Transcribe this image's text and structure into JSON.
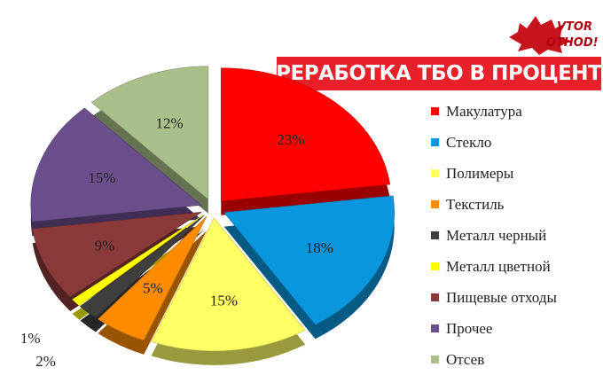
{
  "logo": {
    "line1": "VTOR",
    "line2": "OTHOD!"
  },
  "chart_data": {
    "type": "pie",
    "title": "ПЕРЕРАБОТКА ТБО В ПРОЦЕНТАХ",
    "legend_position": "right",
    "exploded": true,
    "three_d": true,
    "start_angle_deg": 0,
    "direction": "clockwise",
    "series": [
      {
        "name": "",
        "categories": [
          "Макулатура",
          "Стекло",
          "Полимеры",
          "Текстиль",
          "Металл черный",
          "Металл цветной",
          "Пищевые отходы",
          "Прочее",
          "Отсев"
        ],
        "values": [
          23,
          18,
          15,
          5,
          2,
          1,
          9,
          15,
          12
        ],
        "labels": [
          "23%",
          "18%",
          "15%",
          "5%",
          "2%",
          "1%",
          "9%",
          "15%",
          "12%"
        ],
        "colors": [
          "#ff0000",
          "#0a96dc",
          "#ffff66",
          "#ff8c00",
          "#3f3f3f",
          "#ffff00",
          "#8b3a3a",
          "#6b4f8c",
          "#a9bf8a"
        ]
      }
    ]
  }
}
